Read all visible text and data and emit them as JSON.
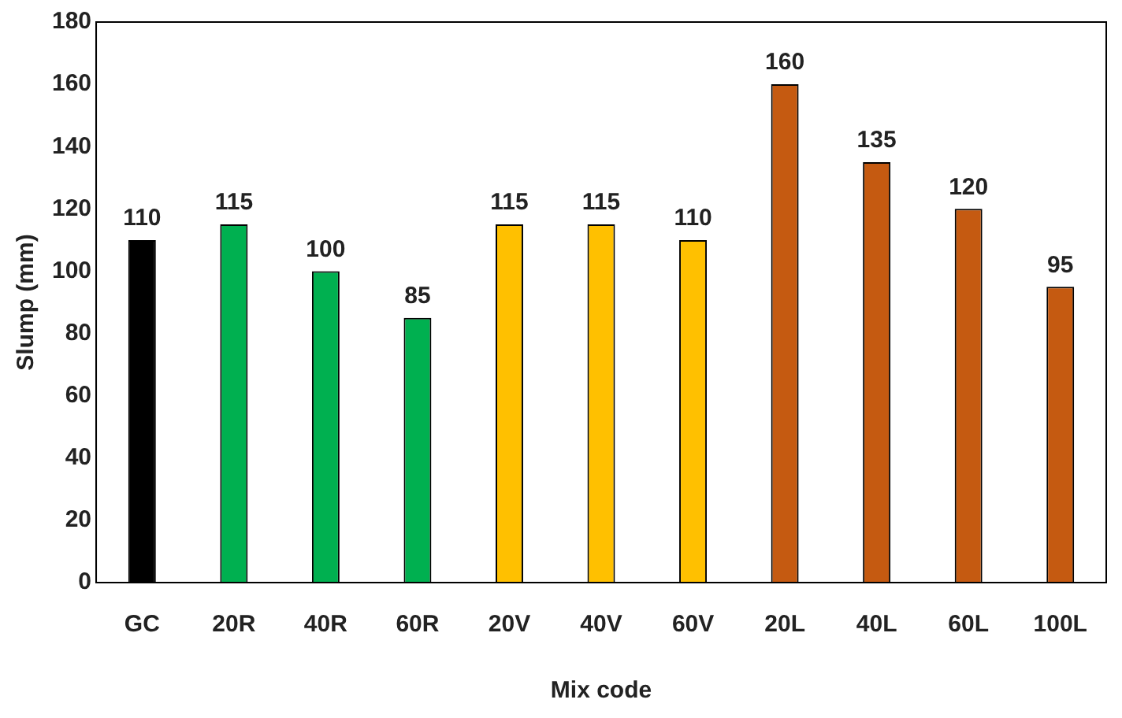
{
  "chart_data": {
    "type": "bar",
    "xlabel": "Mix code",
    "ylabel": "Slump (mm)",
    "categories": [
      "GC",
      "20R",
      "40R",
      "60R",
      "20V",
      "40V",
      "60V",
      "20L",
      "40L",
      "60L",
      "100L"
    ],
    "values": [
      110,
      115,
      100,
      85,
      115,
      115,
      110,
      160,
      135,
      120,
      95
    ],
    "colors": [
      "#000000",
      "#00b050",
      "#00b050",
      "#00b050",
      "#ffc000",
      "#ffc000",
      "#ffc000",
      "#c55a11",
      "#c55a11",
      "#c55a11",
      "#c55a11"
    ],
    "ylim": [
      0,
      180
    ],
    "yticks": [
      0,
      20,
      40,
      60,
      80,
      100,
      120,
      140,
      160,
      180
    ],
    "grid": false,
    "legend": false,
    "data_labels": true
  }
}
